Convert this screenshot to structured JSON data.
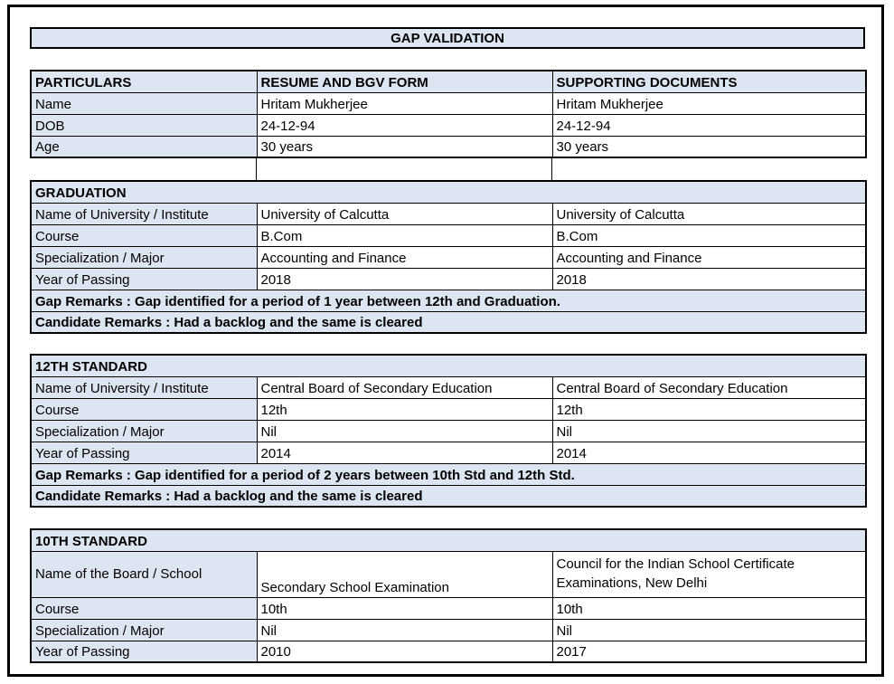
{
  "title": "GAP VALIDATION",
  "colors": {
    "shaded_fill": "#dce5f1",
    "border": "#000000",
    "text": "#000000"
  },
  "particulars": {
    "headers": [
      "PARTICULARS",
      "RESUME AND BGV FORM",
      "SUPPORTING DOCUMENTS"
    ],
    "rows": [
      {
        "label": "Name",
        "resume": "Hritam Mukherjee",
        "supporting": "Hritam Mukherjee"
      },
      {
        "label": "DOB",
        "resume": "24-12-94",
        "supporting": "24-12-94"
      },
      {
        "label": "Age",
        "resume": "30 years",
        "supporting": "30 years"
      }
    ]
  },
  "graduation": {
    "section_title": "GRADUATION",
    "rows": [
      {
        "label": "Name of University / Institute",
        "resume": "University of Calcutta",
        "supporting": "University of Calcutta"
      },
      {
        "label": "Course",
        "resume": "B.Com",
        "supporting": "B.Com"
      },
      {
        "label": "Specialization / Major",
        "resume": "Accounting and Finance",
        "supporting": "Accounting and Finance"
      },
      {
        "label": "Year of Passing",
        "resume": "2018",
        "supporting": "2018"
      }
    ],
    "gap_remarks": "Gap Remarks : Gap identified for a period of 1 year between 12th and Graduation.",
    "candidate_remarks": "Candidate Remarks : Had a backlog and the same is cleared"
  },
  "twelfth": {
    "section_title": "12TH STANDARD",
    "rows": [
      {
        "label": "Name of University / Institute",
        "resume": "Central Board of Secondary Education",
        "supporting": "Central Board of Secondary Education"
      },
      {
        "label": "Course",
        "resume": "12th",
        "supporting": "12th"
      },
      {
        "label": "Specialization / Major",
        "resume": "Nil",
        "supporting": "Nil"
      },
      {
        "label": "Year of Passing",
        "resume": "2014",
        "supporting": "2014"
      }
    ],
    "gap_remarks": "Gap Remarks : Gap identified for a period of 2 years between 10th Std and 12th Std.",
    "candidate_remarks": "Candidate Remarks : Had a backlog and the same is cleared"
  },
  "tenth": {
    "section_title": "10TH STANDARD",
    "rows": [
      {
        "label": "Name of the Board / School",
        "resume": "Secondary School Examination",
        "supporting": "Council for the Indian School Certificate Examinations, New Delhi"
      },
      {
        "label": "Course",
        "resume": "10th",
        "supporting": "10th"
      },
      {
        "label": "Specialization / Major",
        "resume": "Nil",
        "supporting": "Nil"
      },
      {
        "label": "Year of Passing",
        "resume": "2010",
        "supporting": "2017"
      }
    ]
  }
}
